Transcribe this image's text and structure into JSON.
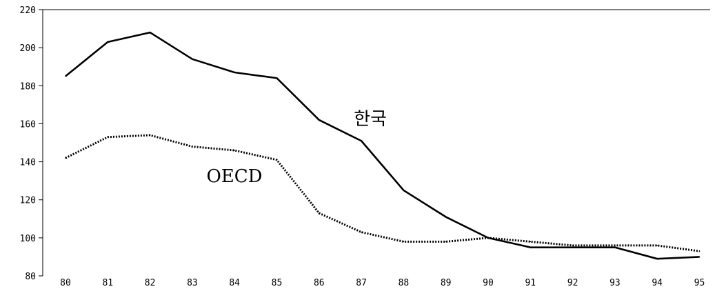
{
  "chart_data": {
    "type": "line",
    "title": "",
    "xlabel": "",
    "ylabel": "",
    "x": [
      "80",
      "81",
      "82",
      "83",
      "84",
      "85",
      "86",
      "87",
      "88",
      "89",
      "90",
      "91",
      "92",
      "93",
      "94",
      "95"
    ],
    "ylim": [
      80,
      220
    ],
    "yticks": [
      80,
      100,
      120,
      140,
      160,
      180,
      200,
      220
    ],
    "grid": false,
    "series": [
      {
        "name": "한국",
        "style": "solid",
        "color": "#000000",
        "values": [
          185,
          203,
          208,
          194,
          187,
          184,
          162,
          151,
          125,
          111,
          100,
          95,
          95,
          95,
          89,
          90
        ]
      },
      {
        "name": "OECD",
        "style": "dotted",
        "color": "#000000",
        "values": [
          142,
          153,
          154,
          148,
          146,
          141,
          113,
          103,
          98,
          98,
          100,
          98,
          96,
          96,
          96,
          93
        ]
      }
    ]
  }
}
